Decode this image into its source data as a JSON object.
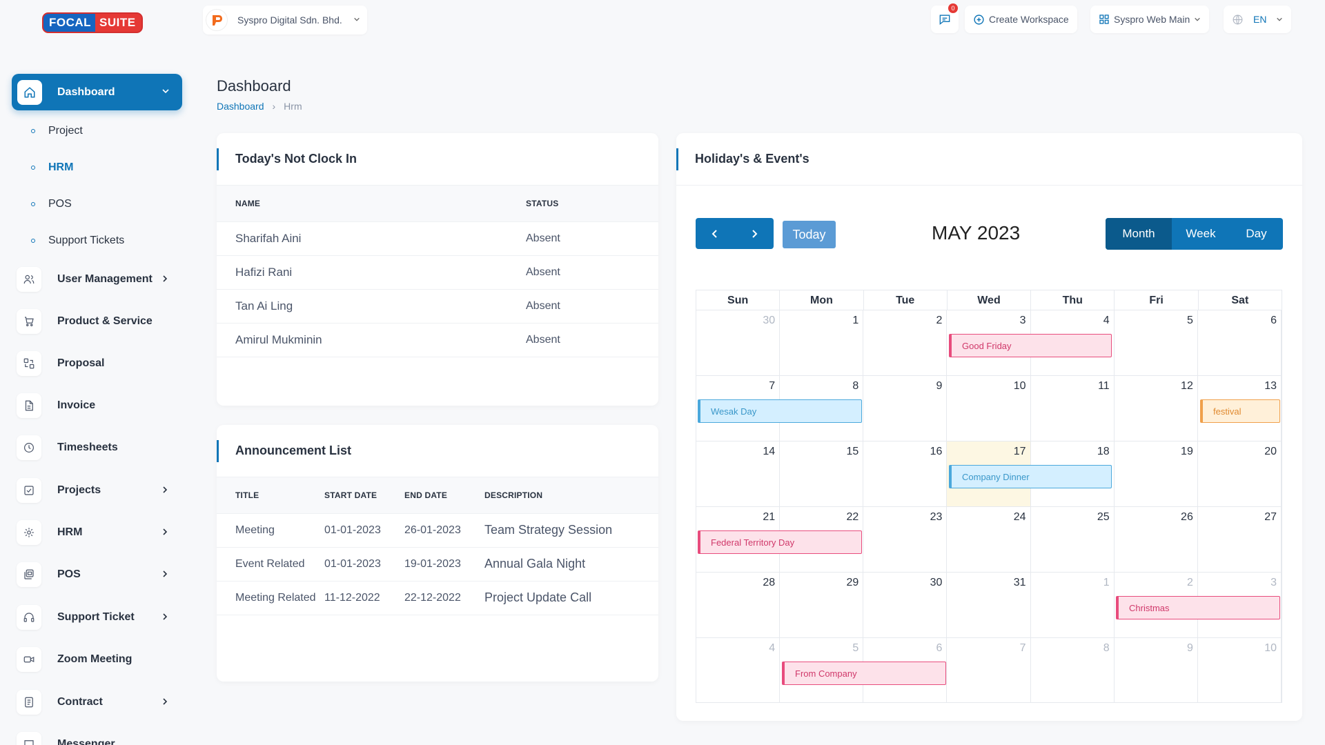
{
  "logo": {
    "part1": "FOCAL",
    "part2": "SUITE"
  },
  "company": {
    "name": "Syspro Digital Sdn. Bhd."
  },
  "topbar": {
    "notifications_count": "0",
    "create_workspace": "Create Workspace",
    "workspace": "Syspro Web Main",
    "language": "EN"
  },
  "sidebar": {
    "active": "Dashboard",
    "sub_items": [
      "Project",
      "HRM",
      "POS",
      "Support Tickets"
    ],
    "items": [
      "User Management",
      "Product & Service",
      "Proposal",
      "Invoice",
      "Timesheets",
      "Projects",
      "HRM",
      "POS",
      "Support Ticket",
      "Zoom Meeting",
      "Contract",
      "Messenger"
    ]
  },
  "page": {
    "title": "Dashboard",
    "breadcrumb": [
      "Dashboard",
      "Hrm"
    ]
  },
  "not_clock_in": {
    "title": "Today's Not Clock In",
    "columns": [
      "NAME",
      "STATUS"
    ],
    "rows": [
      [
        "Sharifah Aini",
        "Absent"
      ],
      [
        "Hafizi Rani",
        "Absent"
      ],
      [
        "Tan Ai Ling",
        "Absent"
      ],
      [
        "Amirul Mukminin",
        "Absent"
      ]
    ]
  },
  "announcements": {
    "title": "Announcement List",
    "columns": [
      "TITLE",
      "START DATE",
      "END DATE",
      "DESCRIPTION"
    ],
    "rows": [
      [
        "Meeting",
        "01-01-2023",
        "26-01-2023",
        "Team Strategy Session"
      ],
      [
        "Event Related",
        "01-01-2023",
        "19-01-2023",
        "Annual Gala Night"
      ],
      [
        "Meeting Related",
        "11-12-2022",
        "22-12-2022",
        "Project Update Call"
      ]
    ]
  },
  "calendar": {
    "title": "Holiday's & Event's",
    "today_label": "Today",
    "month_title": "MAY 2023",
    "views": [
      "Month",
      "Week",
      "Day"
    ],
    "weekdays": [
      "Sun",
      "Mon",
      "Tue",
      "Wed",
      "Thu",
      "Fri",
      "Sat"
    ],
    "weeks": [
      [
        "30",
        "1",
        "2",
        "3",
        "4",
        "5",
        "6"
      ],
      [
        "7",
        "8",
        "9",
        "10",
        "11",
        "12",
        "13"
      ],
      [
        "14",
        "15",
        "16",
        "17",
        "18",
        "19",
        "20"
      ],
      [
        "21",
        "22",
        "23",
        "24",
        "25",
        "26",
        "27"
      ],
      [
        "28",
        "29",
        "30",
        "31",
        "1",
        "2",
        "3"
      ],
      [
        "4",
        "5",
        "6",
        "7",
        "8",
        "9",
        "10"
      ]
    ],
    "events": {
      "good_friday": "Good Friday",
      "wesak": "Wesak Day",
      "festival": "festival",
      "company_dinner": "Company Dinner",
      "federal": "Federal Territory Day",
      "christmas": "Christmas",
      "from_company": "From Company"
    },
    "colors": {
      "primary": "#0f75b7",
      "pink": "#e84c7d",
      "blue": "#4aa8dc",
      "orange": "#f0a04b"
    }
  }
}
